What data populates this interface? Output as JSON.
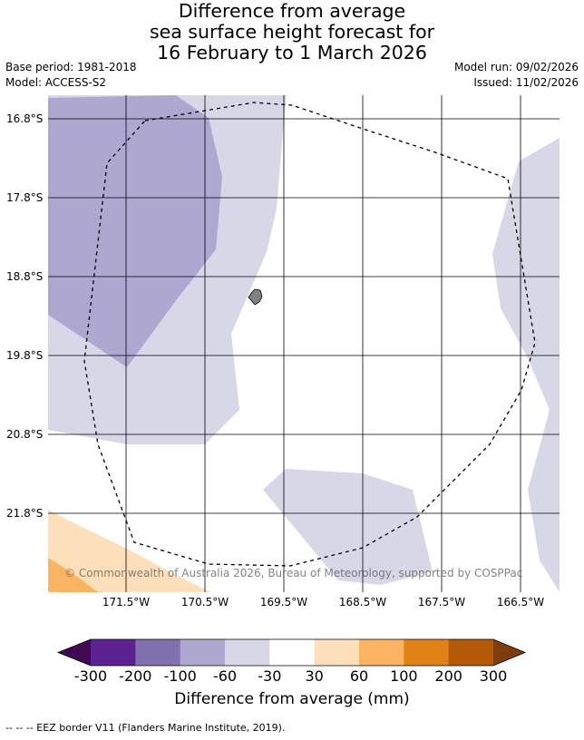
{
  "title": {
    "line1": "Difference from average",
    "line2": "sea surface height forecast for",
    "line3": "16 February to 1 March 2026"
  },
  "meta": {
    "base_period": "Base period: 1981-2018",
    "model": "Model: ACCESS-S2",
    "model_run": "Model run: 09/02/2026",
    "issued": "Issued: 11/02/2026"
  },
  "axes": {
    "lat_labels": [
      "16.8°S",
      "17.8°S",
      "18.8°S",
      "19.8°S",
      "20.8°S",
      "21.8°S"
    ],
    "lon_labels": [
      "171.5°W",
      "170.5°W",
      "169.5°W",
      "168.5°W",
      "167.5°W",
      "166.5°W"
    ]
  },
  "watermark": "© Commonwealth of Australia 2026, Bureau of Meteorology, supported by COSPPac",
  "colorbar": {
    "ticks": [
      "-300",
      "-200",
      "-100",
      "-60",
      "-30",
      "30",
      "60",
      "100",
      "200",
      "300"
    ],
    "colors": [
      "#3f0a53",
      "#5b2290",
      "#8170b0",
      "#aea7d0",
      "#d7d7e8",
      "#ffffff",
      "#fde0b9",
      "#fbb562",
      "#e08216",
      "#b35908",
      "#7f3c0c"
    ],
    "label": "Difference from average (mm)"
  },
  "colors": {
    "class_minus100_minus60": "#aea7d0",
    "class_minus60_minus30": "#d7d7e8",
    "class_30_60": "#fde0b9",
    "class_60_100": "#fbb562",
    "land": "#808080"
  },
  "legend_footnote": "--  --  -- EEZ border V11 (Flanders Marine Institute, 2019)."
}
